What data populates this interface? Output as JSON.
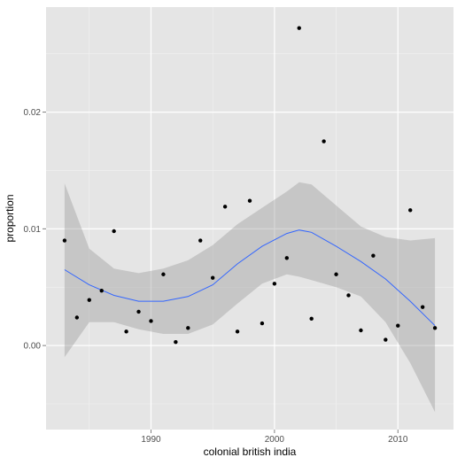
{
  "chart_data": {
    "type": "scatter",
    "title": "",
    "xlabel": "colonial british india",
    "ylabel": "proportion",
    "xlim": [
      1981.5,
      2014.5
    ],
    "ylim": [
      -0.0072,
      0.029
    ],
    "grid": true,
    "x_ticks": [
      1990,
      2000,
      2010
    ],
    "x_tick_labels": [
      "1990",
      "2000",
      "2010"
    ],
    "y_ticks": [
      0.0,
      0.01,
      0.02
    ],
    "y_tick_labels": [
      "0.00",
      "0.01",
      "0.02"
    ],
    "x_minor_ticks": [
      1985,
      1995,
      2005
    ],
    "y_minor_ticks": [
      -0.005,
      0.005,
      0.015,
      0.025
    ],
    "points": [
      {
        "x": 1983,
        "y": 0.009
      },
      {
        "x": 1984,
        "y": 0.0024
      },
      {
        "x": 1985,
        "y": 0.0039
      },
      {
        "x": 1986,
        "y": 0.0047
      },
      {
        "x": 1987,
        "y": 0.0098
      },
      {
        "x": 1988,
        "y": 0.0012
      },
      {
        "x": 1989,
        "y": 0.0029
      },
      {
        "x": 1990,
        "y": 0.0021
      },
      {
        "x": 1991,
        "y": 0.0061
      },
      {
        "x": 1992,
        "y": 0.0003
      },
      {
        "x": 1993,
        "y": 0.0015
      },
      {
        "x": 1994,
        "y": 0.009
      },
      {
        "x": 1995,
        "y": 0.0058
      },
      {
        "x": 1996,
        "y": 0.0119
      },
      {
        "x": 1997,
        "y": 0.0012
      },
      {
        "x": 1998,
        "y": 0.0124
      },
      {
        "x": 1999,
        "y": 0.0019
      },
      {
        "x": 2000,
        "y": 0.0053
      },
      {
        "x": 2001,
        "y": 0.0075
      },
      {
        "x": 2002,
        "y": 0.0272
      },
      {
        "x": 2003,
        "y": 0.0023
      },
      {
        "x": 2004,
        "y": 0.0175
      },
      {
        "x": 2005,
        "y": 0.0061
      },
      {
        "x": 2006,
        "y": 0.0043
      },
      {
        "x": 2007,
        "y": 0.0013
      },
      {
        "x": 2008,
        "y": 0.0077
      },
      {
        "x": 2009,
        "y": 0.0005
      },
      {
        "x": 2010,
        "y": 0.0017
      },
      {
        "x": 2011,
        "y": 0.0116
      },
      {
        "x": 2012,
        "y": 0.0033
      },
      {
        "x": 2013,
        "y": 0.0015
      }
    ],
    "smooth": {
      "x": [
        1983,
        1985,
        1987,
        1989,
        1991,
        1993,
        1995,
        1997,
        1999,
        2001,
        2002,
        2003,
        2005,
        2007,
        2009,
        2011,
        2013
      ],
      "y": [
        0.0065,
        0.0052,
        0.0043,
        0.0038,
        0.0038,
        0.0042,
        0.0052,
        0.007,
        0.0085,
        0.0096,
        0.0099,
        0.0097,
        0.0085,
        0.0072,
        0.0057,
        0.0038,
        0.0017
      ],
      "lower": [
        -0.001,
        0.002,
        0.002,
        0.0014,
        0.001,
        0.001,
        0.0018,
        0.0036,
        0.0053,
        0.0061,
        0.0059,
        0.0056,
        0.005,
        0.0042,
        0.002,
        -0.0015,
        -0.0057
      ],
      "upper": [
        0.0139,
        0.0083,
        0.0066,
        0.0062,
        0.0066,
        0.0073,
        0.0086,
        0.0104,
        0.0118,
        0.0132,
        0.014,
        0.0138,
        0.012,
        0.0102,
        0.0093,
        0.009,
        0.0092
      ]
    },
    "colors": {
      "panel_background": "#e5e5e5",
      "grid_major": "#ffffff",
      "grid_minor": "#f2f2f2",
      "points": "#000000",
      "smooth_line": "#3366ff",
      "ribbon": "#999999"
    }
  }
}
